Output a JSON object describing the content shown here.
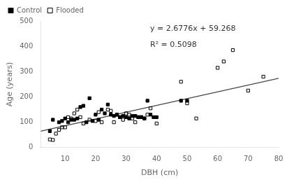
{
  "chart_data": {
    "type": "scatter",
    "xlabel": "DBH (cm)",
    "ylabel": "Age (years)",
    "series": [
      {
        "name": "Control",
        "color": "#000000",
        "marker": "square",
        "x": [
          5,
          6,
          8,
          9,
          10,
          11,
          12,
          13,
          14,
          15,
          16,
          17,
          18,
          19,
          20,
          21,
          22,
          23,
          24,
          25,
          26,
          27,
          28,
          29,
          30,
          31,
          32,
          33,
          34,
          35,
          36,
          37,
          38,
          39,
          40,
          48,
          50
        ],
        "values": [
          65,
          110,
          100,
          105,
          115,
          100,
          110,
          110,
          115,
          160,
          165,
          100,
          195,
          105,
          130,
          110,
          150,
          135,
          170,
          130,
          125,
          130,
          120,
          125,
          120,
          115,
          125,
          125,
          120,
          120,
          115,
          185,
          130,
          120,
          120,
          185,
          185
        ]
      },
      {
        "name": "Flooded",
        "color": "#000000",
        "marker": "open_square",
        "x": [
          5,
          6,
          7,
          8,
          9,
          10,
          11,
          12,
          13,
          14,
          15,
          16,
          18,
          20,
          21,
          22,
          24,
          25,
          26,
          27,
          28,
          29,
          30,
          31,
          32,
          33,
          34,
          35,
          36,
          37,
          38,
          40,
          48,
          50,
          53,
          60,
          62,
          65,
          70,
          75
        ],
        "values": [
          32,
          30,
          55,
          70,
          80,
          80,
          120,
          115,
          135,
          150,
          120,
          95,
          110,
          105,
          140,
          100,
          150,
          145,
          100,
          130,
          120,
          110,
          135,
          130,
          115,
          100,
          120,
          120,
          115,
          130,
          155,
          95,
          260,
          175,
          115,
          315,
          340,
          385,
          225,
          280
        ]
      },
      {
        "type": "line",
        "color": "#444444",
        "line_style": "solid",
        "x": [
          2,
          80
        ],
        "values": [
          64.6232,
          273.476
        ]
      }
    ],
    "annotations": [
      "y = 2.6776x + 59.268",
      "R² = 0.5098"
    ],
    "xlim": [
      2,
      80
    ],
    "ylim": [
      0,
      500
    ],
    "xticks": [
      10,
      20,
      30,
      40,
      50,
      60,
      70,
      80
    ],
    "yticks": [
      0,
      100,
      200,
      300,
      400,
      500
    ],
    "grid": false,
    "legend": "upper left"
  }
}
